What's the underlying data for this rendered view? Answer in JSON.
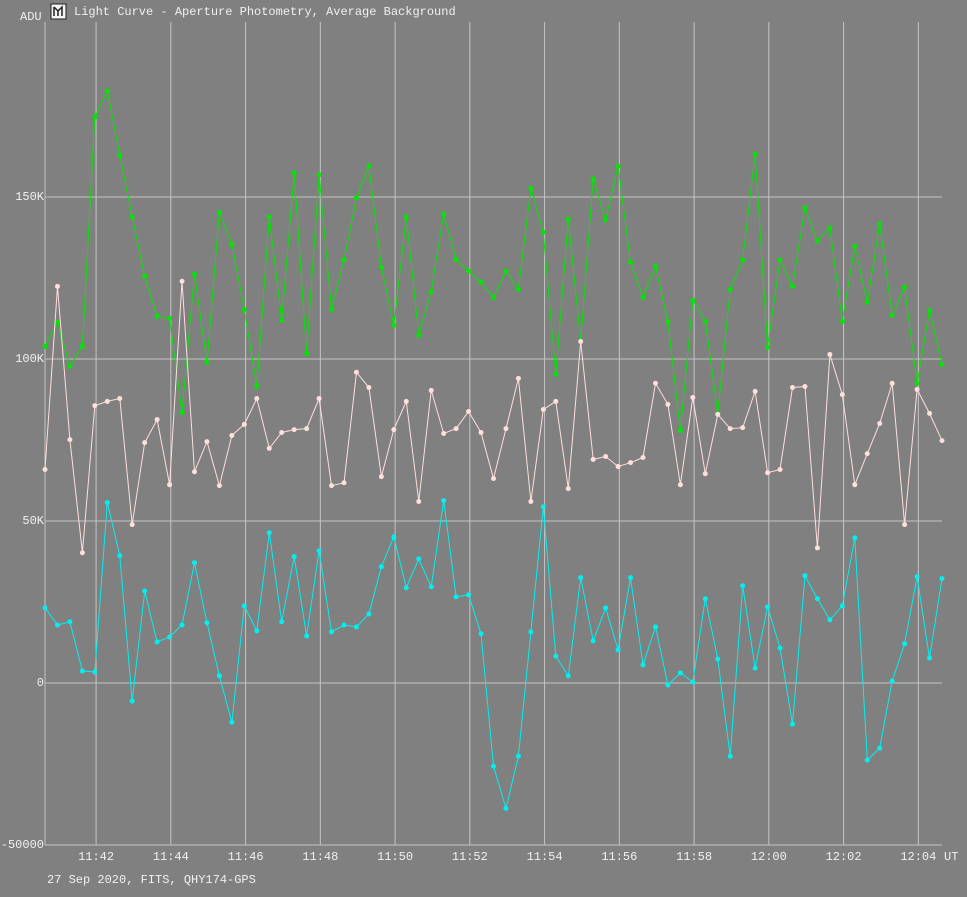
{
  "chart_data": {
    "type": "line",
    "title": "Light Curve - Aperture Photometry, Average Background",
    "ylabel": "ADU",
    "xlabel": "UT",
    "footer": "27 Sep 2020, FITS, QHY174-GPS",
    "x": [
      "11:40:38",
      "11:40:58",
      "11:41:18",
      "11:41:38",
      "11:41:58",
      "11:42:18",
      "11:42:38",
      "11:42:58",
      "11:43:18",
      "11:43:38",
      "11:43:58",
      "11:44:18",
      "11:44:38",
      "11:44:58",
      "11:45:18",
      "11:45:38",
      "11:45:58",
      "11:46:18",
      "11:46:38",
      "11:46:58",
      "11:47:18",
      "11:47:38",
      "11:47:58",
      "11:48:18",
      "11:48:38",
      "11:48:58",
      "11:49:18",
      "11:49:38",
      "11:49:58",
      "11:50:18",
      "11:50:38",
      "11:50:58",
      "11:51:18",
      "11:51:38",
      "11:51:58",
      "11:52:18",
      "11:52:38",
      "11:52:58",
      "11:53:18",
      "11:53:38",
      "11:53:58",
      "11:54:18",
      "11:54:38",
      "11:54:58",
      "11:55:18",
      "11:55:38",
      "11:55:58",
      "11:56:18",
      "11:56:38",
      "11:56:58",
      "11:57:18",
      "11:57:38",
      "11:57:58",
      "11:58:18",
      "11:58:38",
      "11:58:58",
      "11:59:18",
      "11:59:38",
      "11:59:58",
      "12:00:18",
      "12:00:38",
      "12:00:58",
      "12:01:18",
      "12:01:38",
      "12:01:58",
      "12:02:18",
      "12:02:38",
      "12:02:58",
      "12:03:18",
      "12:03:38",
      "12:03:58",
      "12:04:18",
      "12:04:38"
    ],
    "series": [
      {
        "color": "#00e600",
        "values": [
          103900,
          111300,
          97700,
          103900,
          174700,
          182700,
          162900,
          143800,
          125500,
          113200,
          112500,
          83500,
          126200,
          98900,
          145300,
          135400,
          115300,
          91500,
          143800,
          111900,
          157400,
          101700,
          156800,
          115300,
          130500,
          149700,
          159500,
          128300,
          110400,
          143800,
          107300,
          120900,
          144700,
          130800,
          127100,
          123700,
          119000,
          127100,
          121500,
          152700,
          139100,
          95200,
          143200,
          105400,
          155500,
          142900,
          159500,
          129900,
          119000,
          128600,
          111600,
          77900,
          118100,
          111600,
          83200,
          121500,
          130500,
          163300,
          103600,
          130500,
          122400,
          146600,
          136400,
          140400,
          111600,
          134800,
          117500,
          141600,
          113500,
          122100,
          92500,
          115000,
          98300
        ]
      },
      {
        "color": "#ffdede",
        "values": [
          65900,
          122400,
          75100,
          40200,
          85600,
          86900,
          87800,
          48900,
          74200,
          81300,
          61200,
          124000,
          65200,
          74500,
          60900,
          76400,
          79800,
          87800,
          72400,
          77300,
          78200,
          78500,
          87800,
          60900,
          61800,
          95900,
          91200,
          63700,
          78200,
          86900,
          56000,
          90300,
          77000,
          78500,
          83800,
          77300,
          63100,
          78500,
          94000,
          56000,
          84400,
          86900,
          60000,
          105400,
          69000,
          69900,
          66800,
          68000,
          69600,
          92500,
          86000,
          61200,
          88100,
          64600,
          82900,
          78500,
          78800,
          90000,
          64900,
          65900,
          91200,
          91500,
          41700,
          101400,
          89000,
          61200,
          70800,
          80100,
          92500,
          48900,
          90600,
          83200,
          74800
        ]
      },
      {
        "color": "#00f0f0",
        "values": [
          23200,
          17900,
          18900,
          3700,
          3400,
          55700,
          39300,
          -5600,
          28400,
          12700,
          14200,
          17900,
          37100,
          18600,
          2200,
          -12100,
          23800,
          16100,
          46400,
          18900,
          39000,
          14500,
          40800,
          15800,
          17900,
          17300,
          21300,
          35900,
          45100,
          29400,
          38300,
          29700,
          56300,
          26600,
          27200,
          15200,
          -25700,
          -38700,
          -22600,
          15800,
          54400,
          8300,
          2200,
          32500,
          13000,
          23200,
          10200,
          32500,
          5600,
          17300,
          -600,
          3100,
          300,
          26000,
          7400,
          -22600,
          30000,
          4600,
          23500,
          10800,
          -12700,
          33100,
          26000,
          19500,
          23800,
          44800,
          -23800,
          -20100,
          600,
          12100,
          32800,
          7700,
          32200
        ]
      }
    ],
    "xlim": [
      "11:40:38",
      "12:04:38"
    ],
    "xticks": [
      "11:42",
      "11:44",
      "11:46",
      "11:48",
      "11:50",
      "11:52",
      "11:54",
      "11:56",
      "11:58",
      "12:00",
      "12:02",
      "12:04"
    ],
    "ylim": [
      -50000,
      204000
    ],
    "yticks": [
      -50000,
      0,
      {
        "value": 50000,
        "label": "50K"
      },
      {
        "value": 100000,
        "label": "100K"
      },
      {
        "value": 150000,
        "label": "150K"
      }
    ],
    "grid": true
  }
}
